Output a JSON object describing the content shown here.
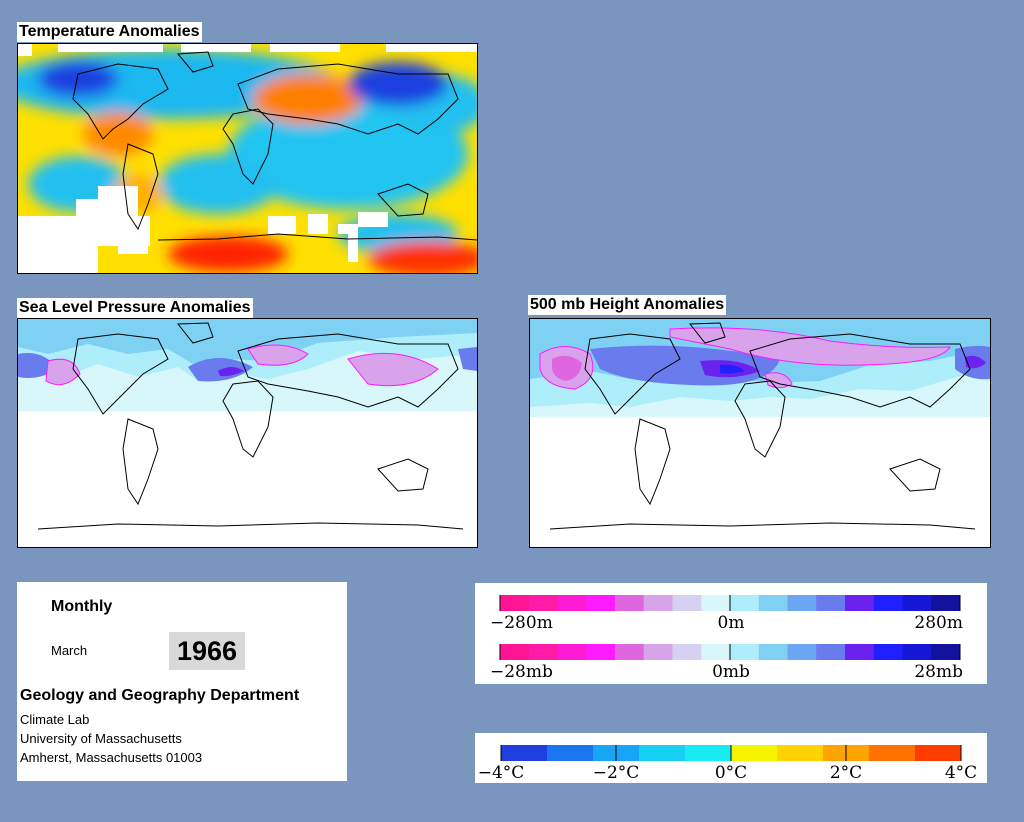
{
  "maps": {
    "temperature": {
      "title": "Temperature Anomalies"
    },
    "slp": {
      "title": "Sea Level Pressure Anomalies"
    },
    "height500": {
      "title": "500 mb Height Anomalies"
    }
  },
  "info": {
    "period": "Monthly",
    "month": "March",
    "year": "1966",
    "department": "Geology and Geography Department",
    "lab": "Climate Lab",
    "university": "University of Massachusetts",
    "address": "Amherst, Massachusetts 01003"
  },
  "legend_height_pressure": {
    "colors": [
      "#ff1493",
      "#ff1aa8",
      "#ff1ad4",
      "#ff1aff",
      "#e066e0",
      "#d9a3ec",
      "#d8d0f2",
      "#d9f7fb",
      "#aeeefb",
      "#7fd1f4",
      "#6aa6f2",
      "#6a7bee",
      "#6b22ef",
      "#2020ff",
      "#1616d6",
      "#12129e"
    ],
    "height_labels": [
      "−280m",
      "0m",
      "280m"
    ],
    "pressure_labels": [
      "−28mb",
      "0mb",
      "28mb"
    ]
  },
  "legend_temperature": {
    "colors": [
      "#1f3ee0",
      "#1c75f0",
      "#17a5f5",
      "#16d1f4",
      "#18ecf2",
      "#f7f400",
      "#ffd200",
      "#ffa300",
      "#ff7200",
      "#ff3c00"
    ],
    "labels": [
      "−4°C",
      "−2°C",
      "0°C",
      "2°C",
      "4°C"
    ]
  }
}
